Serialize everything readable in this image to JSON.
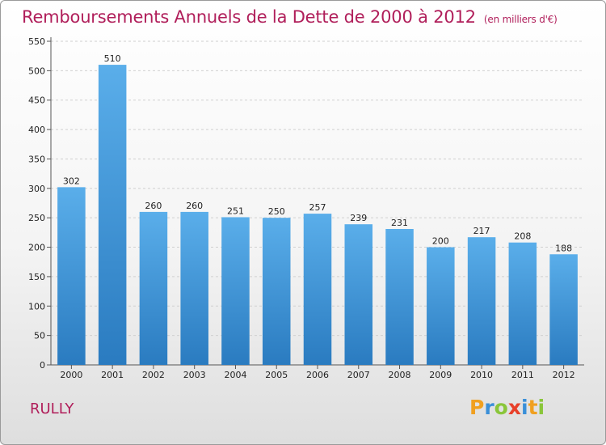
{
  "chart_data": {
    "type": "bar",
    "title": "Remboursements Annuels de la Dette de 2000 à 2012",
    "unit_note": "(en milliers d'€)",
    "categories": [
      "2000",
      "2001",
      "2002",
      "2003",
      "2004",
      "2005",
      "2006",
      "2007",
      "2008",
      "2009",
      "2010",
      "2011",
      "2012"
    ],
    "values": [
      302,
      510,
      260,
      260,
      251,
      250,
      257,
      239,
      231,
      200,
      217,
      208,
      188
    ],
    "ylim": [
      0,
      550
    ],
    "yticks": [
      0,
      50,
      100,
      150,
      200,
      250,
      300,
      350,
      400,
      450,
      500,
      550
    ],
    "grid": true,
    "bar_color_top": "#5aaeea",
    "bar_color_bottom": "#2a7bc0"
  },
  "footer": {
    "commune": "RULLY",
    "brand_letters": [
      {
        "char": "P",
        "color": "#f0a020"
      },
      {
        "char": "r",
        "color": "#3a8fd8"
      },
      {
        "char": "o",
        "color": "#8ac63a"
      },
      {
        "char": "x",
        "color": "#e8402a"
      },
      {
        "char": "i",
        "color": "#3a8fd8"
      },
      {
        "char": "t",
        "color": "#f0a020"
      },
      {
        "char": "i",
        "color": "#8ac63a"
      }
    ]
  }
}
